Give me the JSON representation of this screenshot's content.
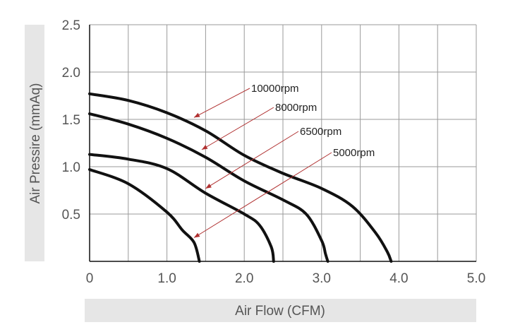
{
  "chart_data": {
    "type": "line",
    "title": "",
    "xlabel": "Air Flow (CFM)",
    "ylabel": "Air Pressire (mmAq)",
    "xlim": [
      0,
      5.0
    ],
    "ylim": [
      0,
      2.5
    ],
    "x_ticks": [
      "0",
      "1.0",
      "2.0",
      "3.0",
      "4.0",
      "5.0"
    ],
    "y_ticks": [
      "0.5",
      "1.0",
      "1.5",
      "2.0",
      "2.5"
    ],
    "grid": true,
    "legend": "none",
    "series": [
      {
        "name": "10000rpm",
        "color": "#111111",
        "points": [
          [
            0.0,
            1.77
          ],
          [
            0.5,
            1.7
          ],
          [
            1.0,
            1.57
          ],
          [
            1.5,
            1.38
          ],
          [
            2.0,
            1.12
          ],
          [
            2.5,
            0.93
          ],
          [
            3.0,
            0.77
          ],
          [
            3.4,
            0.58
          ],
          [
            3.7,
            0.3
          ],
          [
            3.85,
            0.1
          ],
          [
            3.9,
            0.0
          ]
        ],
        "pointer_at": [
          1.35,
          1.52
        ]
      },
      {
        "name": "8000rpm",
        "color": "#111111",
        "points": [
          [
            0.0,
            1.56
          ],
          [
            0.5,
            1.45
          ],
          [
            1.0,
            1.3
          ],
          [
            1.5,
            1.1
          ],
          [
            2.0,
            0.85
          ],
          [
            2.5,
            0.65
          ],
          [
            2.8,
            0.5
          ],
          [
            3.0,
            0.22
          ],
          [
            3.05,
            0.08
          ],
          [
            3.08,
            0.0
          ]
        ],
        "pointer_at": [
          1.45,
          1.18
        ]
      },
      {
        "name": "6500rpm",
        "color": "#111111",
        "points": [
          [
            0.0,
            1.13
          ],
          [
            0.5,
            1.08
          ],
          [
            1.0,
            0.98
          ],
          [
            1.5,
            0.72
          ],
          [
            2.0,
            0.5
          ],
          [
            2.2,
            0.38
          ],
          [
            2.35,
            0.15
          ],
          [
            2.38,
            0.0
          ]
        ],
        "pointer_at": [
          1.5,
          0.77
        ]
      },
      {
        "name": "5000rpm",
        "color": "#111111",
        "points": [
          [
            0.0,
            0.97
          ],
          [
            0.5,
            0.82
          ],
          [
            1.0,
            0.52
          ],
          [
            1.2,
            0.33
          ],
          [
            1.35,
            0.2
          ],
          [
            1.42,
            0.0
          ]
        ],
        "pointer_at": [
          1.35,
          0.25
        ]
      }
    ],
    "annotations": [
      {
        "text": "10000rpm",
        "series": 0
      },
      {
        "text": "8000rpm",
        "series": 1
      },
      {
        "text": "6500rpm",
        "series": 2
      },
      {
        "text": "5000rpm",
        "series": 3
      }
    ],
    "colors": {
      "grid": "#9a9a9a",
      "axis": "#111111",
      "curve": "#111111",
      "label_band": "#e6e6e6",
      "pointer": "#b03030"
    }
  }
}
